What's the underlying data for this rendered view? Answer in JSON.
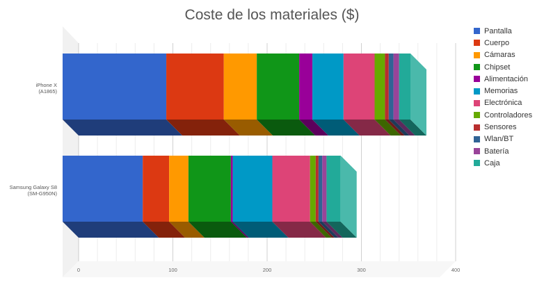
{
  "chart_data": {
    "type": "bar",
    "orientation": "horizontal",
    "stacked": true,
    "style": "3d",
    "title": "Coste de los materiales ($)",
    "xlabel": "",
    "ylabel": "",
    "xlim": [
      0,
      400
    ],
    "x_ticks": [
      0,
      100,
      200,
      300,
      400
    ],
    "grid": true,
    "legend": "right",
    "categories": [
      {
        "line1": "iPhone X",
        "line2": "(A1865)"
      },
      {
        "line1": "Samsung Galaxy S8",
        "line2": "(SM-G950N)"
      }
    ],
    "series": [
      {
        "name": "Pantalla",
        "color": "#3366cc",
        "values": [
          110,
          85
        ]
      },
      {
        "name": "Cuerpo",
        "color": "#dc3912",
        "values": [
          61,
          28
        ]
      },
      {
        "name": "Cámaras",
        "color": "#ff9900",
        "values": [
          35,
          20.5
        ]
      },
      {
        "name": "Chipset",
        "color": "#109618",
        "values": [
          45,
          45
        ]
      },
      {
        "name": "Alimentación",
        "color": "#990099",
        "values": [
          14,
          2
        ]
      },
      {
        "name": "Memorias",
        "color": "#0099c6",
        "values": [
          33,
          42
        ]
      },
      {
        "name": "Electrónica",
        "color": "#dd4477",
        "values": [
          33,
          40
        ]
      },
      {
        "name": "Controladores",
        "color": "#66aa00",
        "values": [
          11,
          6
        ]
      },
      {
        "name": "Sensores",
        "color": "#b82e2e",
        "values": [
          4,
          3
        ]
      },
      {
        "name": "Wlan/BT",
        "color": "#316395",
        "values": [
          5,
          4
        ]
      },
      {
        "name": "Batería",
        "color": "#994499",
        "values": [
          6,
          4.5
        ]
      },
      {
        "name": "Caja",
        "color": "#22aa99",
        "values": [
          12,
          15
        ]
      }
    ]
  }
}
